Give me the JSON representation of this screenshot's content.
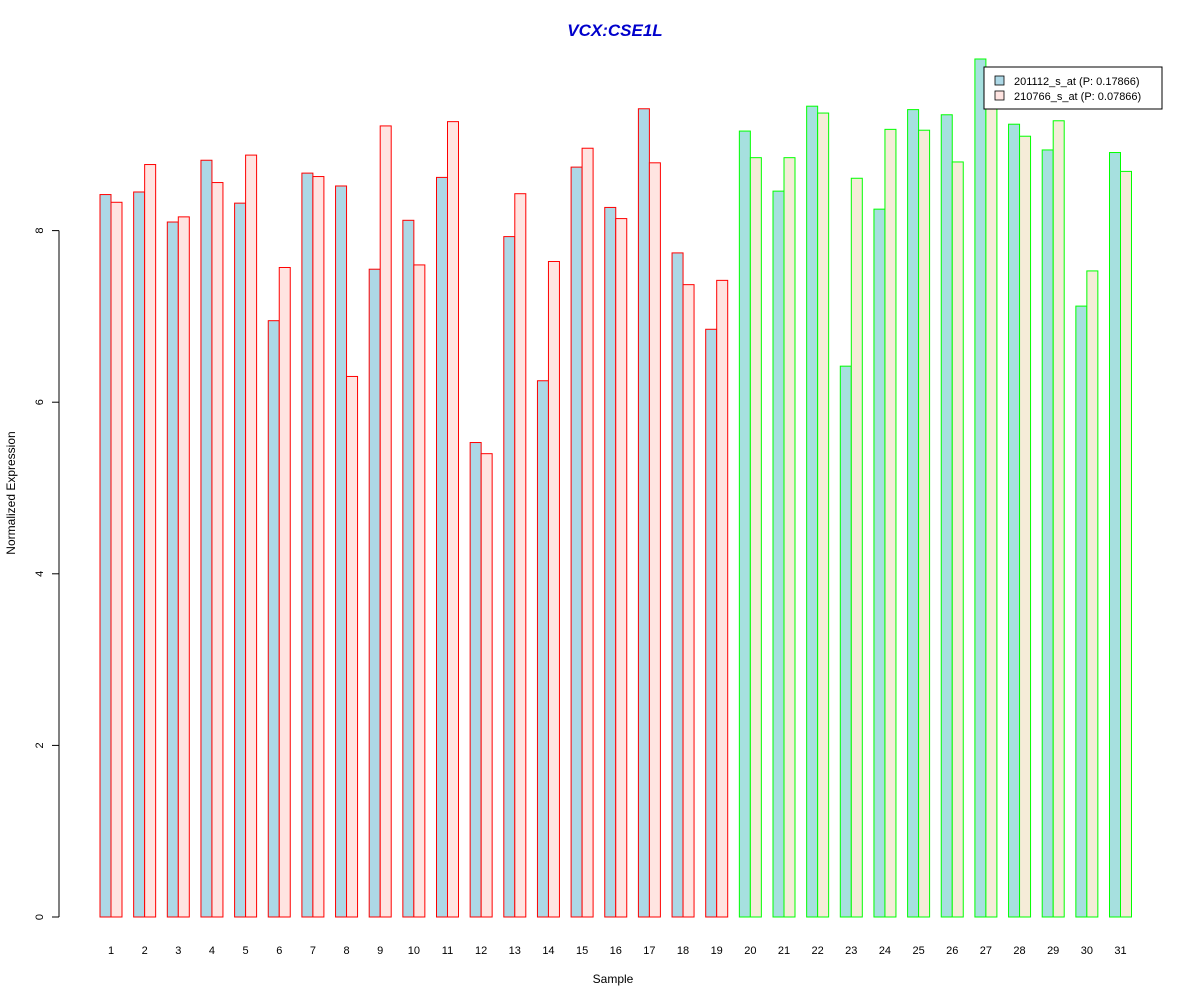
{
  "chart_data": {
    "type": "bar",
    "title": "VCX:CSE1L",
    "title_color": "#0000cc",
    "xlabel": "Sample",
    "ylabel": "Normalized Expression",
    "categories": [
      "1",
      "2",
      "3",
      "4",
      "5",
      "6",
      "7",
      "8",
      "9",
      "10",
      "11",
      "12",
      "13",
      "14",
      "15",
      "16",
      "17",
      "18",
      "19",
      "20",
      "21",
      "22",
      "23",
      "24",
      "25",
      "26",
      "27",
      "28",
      "29",
      "30",
      "31"
    ],
    "ylim": [
      0,
      10
    ],
    "yticks": [
      "0",
      "2",
      "4",
      "6",
      "8"
    ],
    "grid": false,
    "legend_position": "top-right",
    "series": [
      {
        "name": "201112_s_at (P: 0.17866)",
        "values": [
          8.42,
          8.45,
          8.1,
          8.82,
          8.32,
          6.95,
          8.67,
          8.52,
          7.55,
          8.12,
          8.62,
          5.53,
          7.93,
          6.25,
          8.74,
          8.27,
          9.42,
          7.74,
          6.85,
          9.16,
          8.46,
          9.45,
          6.42,
          8.25,
          9.41,
          9.35,
          10.0,
          9.24,
          8.94,
          7.12,
          8.91
        ],
        "legend_fill": "#add8e6"
      },
      {
        "name": "210766_s_at (P: 0.07866)",
        "values": [
          8.33,
          8.77,
          8.16,
          8.56,
          8.88,
          7.57,
          8.63,
          6.3,
          9.22,
          7.6,
          9.27,
          5.4,
          8.43,
          7.64,
          8.96,
          8.14,
          8.79,
          7.37,
          7.42,
          8.85,
          8.85,
          9.37,
          8.61,
          9.18,
          9.17,
          8.8,
          9.5,
          9.1,
          9.28,
          7.53,
          8.69
        ],
        "legend_fill": "#ffe4e1"
      }
    ],
    "groups": [
      {
        "samples": [
          1,
          19
        ],
        "border": "#ff0000",
        "fill_a": "#add8e6",
        "fill_b": "#ffe4e1"
      },
      {
        "samples": [
          20,
          31
        ],
        "border": "#00ff00",
        "fill_a": "#a6e0df",
        "fill_b": "#f5ecd8"
      }
    ]
  }
}
